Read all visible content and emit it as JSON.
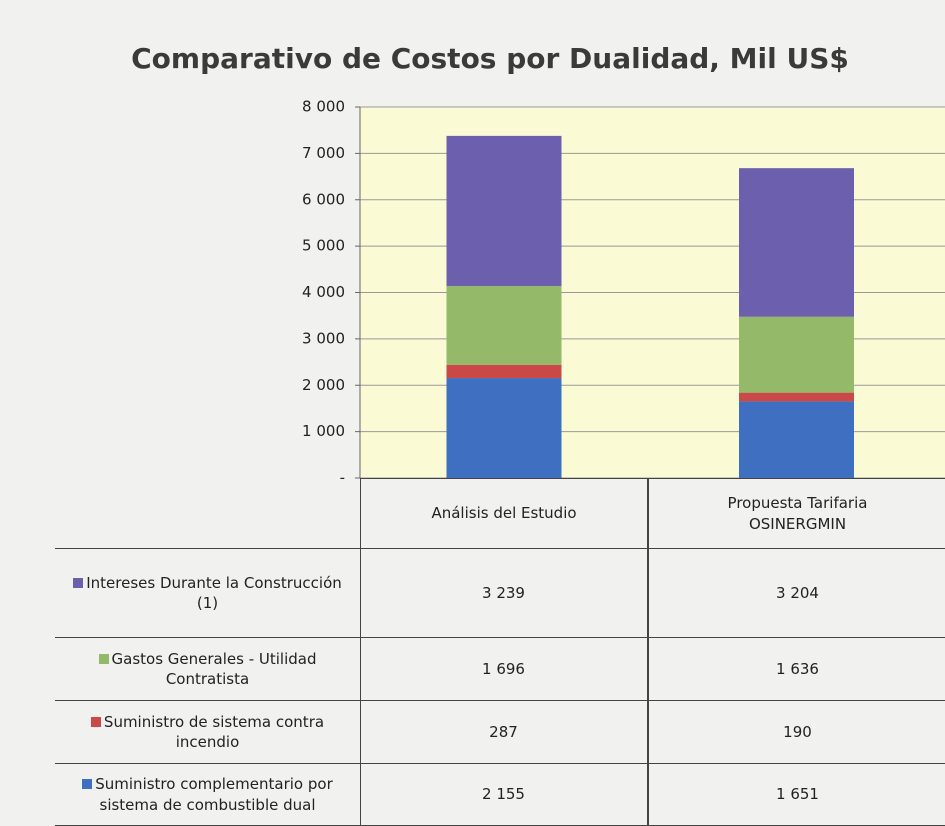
{
  "chart_data": {
    "type": "bar",
    "stacked": true,
    "title": "Comparativo de Costos por Dualidad, Mil US$",
    "categories": [
      "Análisis del Estudio",
      "Propuesta Tarifaria OSINERGMIN"
    ],
    "series": [
      {
        "name": "Suministro complementario por sistema de combustible dual",
        "color": "#3f6fc0",
        "values": [
          2155,
          1651
        ],
        "value_labels": [
          "2 155",
          "1 651"
        ]
      },
      {
        "name": "Suministro de sistema contra incendio",
        "color": "#c94848",
        "values": [
          287,
          190
        ],
        "value_labels": [
          "287",
          "190"
        ]
      },
      {
        "name": "Gastos Generales - Utilidad Contratista",
        "color": "#94b968",
        "values": [
          1696,
          1636
        ],
        "value_labels": [
          "1 696",
          "1 636"
        ]
      },
      {
        "name": "Intereses Durante la Construcción (1)",
        "color": "#6b5fae",
        "values": [
          3239,
          3204
        ],
        "value_labels": [
          "3 239",
          "3 204"
        ]
      }
    ],
    "ylim": [
      0,
      8000
    ],
    "yticks": [
      {
        "value": 0,
        "label": "-"
      },
      {
        "value": 1000,
        "label": "1 000"
      },
      {
        "value": 2000,
        "label": "2 000"
      },
      {
        "value": 3000,
        "label": "3 000"
      },
      {
        "value": 4000,
        "label": "4 000"
      },
      {
        "value": 5000,
        "label": "5 000"
      },
      {
        "value": 6000,
        "label": "6 000"
      },
      {
        "value": 7000,
        "label": "7 000"
      },
      {
        "value": 8000,
        "label": "8 000"
      }
    ],
    "grid": true,
    "plot_background": "#fafad4"
  }
}
